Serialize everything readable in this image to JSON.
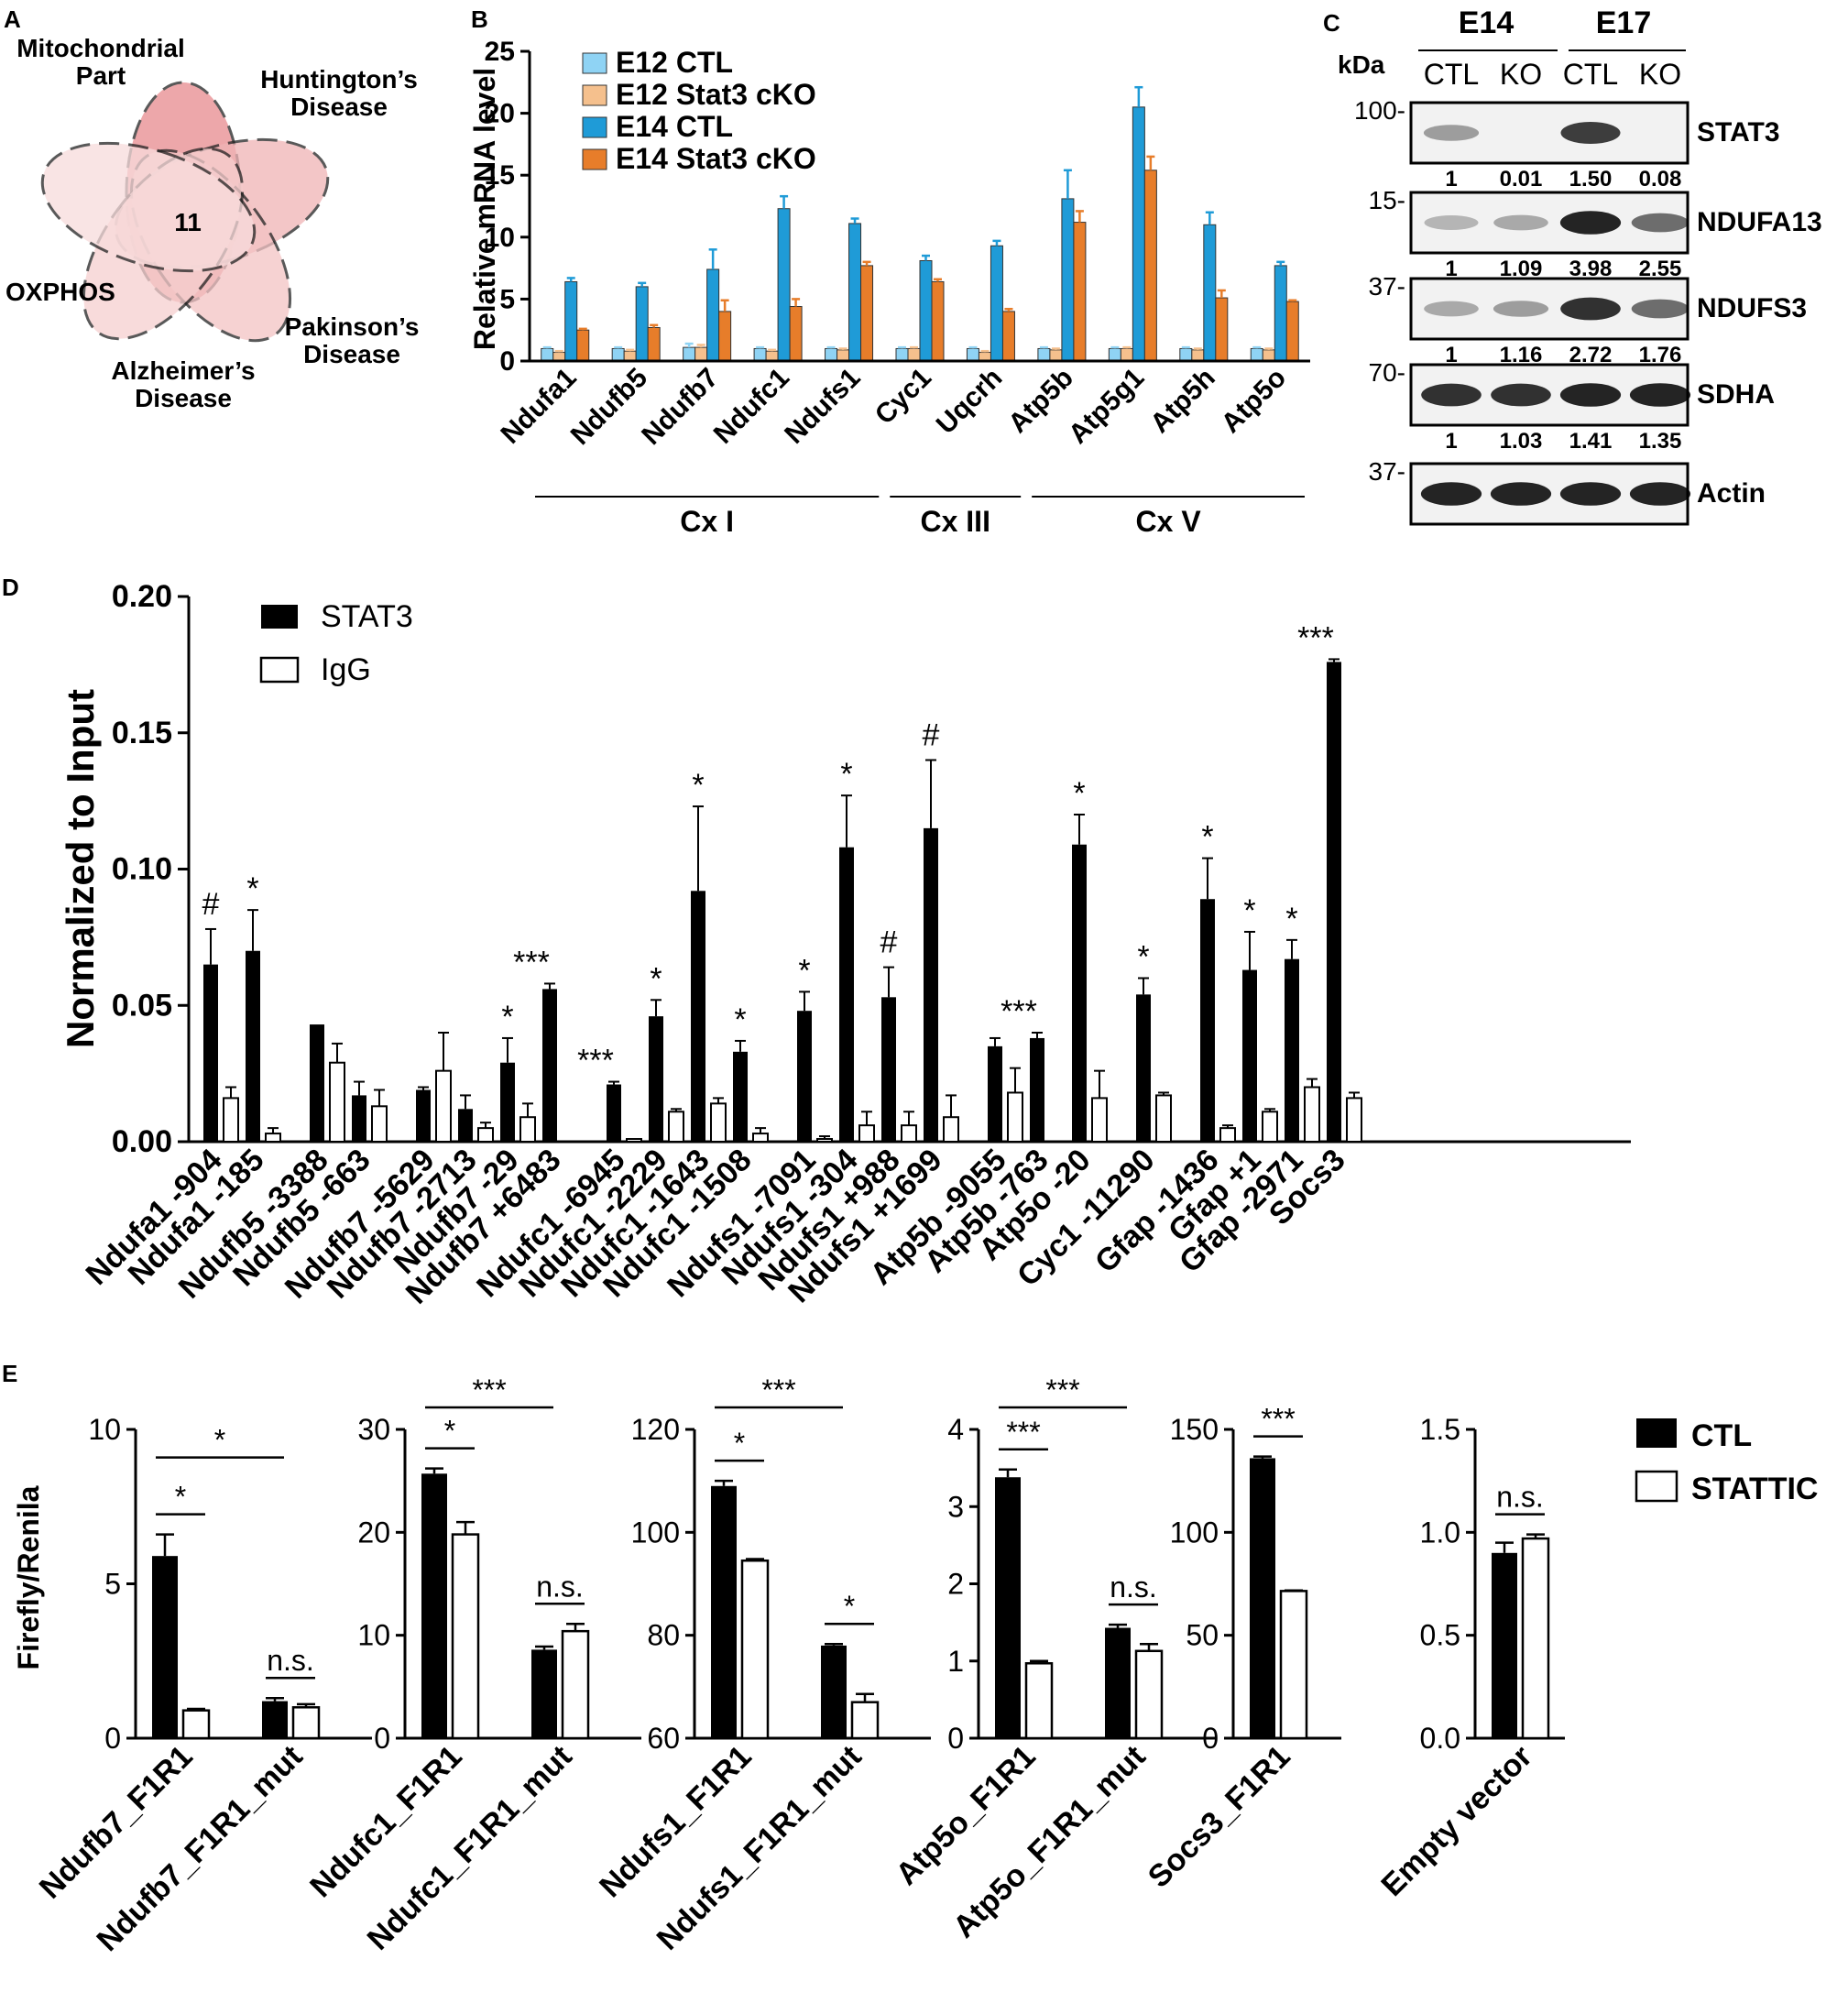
{
  "panel_labels": {
    "a": "A",
    "b": "B",
    "c": "C",
    "d": "D",
    "e": "E"
  },
  "venn": {
    "center_count": "11",
    "labels": [
      "Mitochondrial Part",
      "Huntington’s Disease",
      "Pakinson’s Disease",
      "Alzheimer’s Disease",
      "OXPHOS"
    ],
    "colors": [
      "#e88a8e",
      "#efb3b5",
      "#f3c3c4",
      "#f6cfcf",
      "#f8dcdc"
    ]
  },
  "western": {
    "kda_label": "kDa",
    "groups": [
      "E14",
      "E17"
    ],
    "lanes": [
      "CTL",
      "KO",
      "CTL",
      "KO"
    ],
    "blots": [
      {
        "name": "STAT3",
        "kda": "100-",
        "quant": [
          "1",
          "0.01",
          "1.50",
          "0.08"
        ]
      },
      {
        "name": "NDUFA13",
        "kda": "15-",
        "quant": [
          "1",
          "1.09",
          "3.98",
          "2.55"
        ]
      },
      {
        "name": "NDUFS3",
        "kda": "37-",
        "quant": [
          "1",
          "1.16",
          "2.72",
          "1.76"
        ]
      },
      {
        "name": "SDHA",
        "kda": "70-",
        "quant": [
          "1",
          "1.03",
          "1.41",
          "1.35"
        ]
      },
      {
        "name": "Actin",
        "kda": "37-",
        "quant": []
      }
    ]
  },
  "chart_data": [
    {
      "panel": "B",
      "type": "bar",
      "ylabel": "Relative mRNA level",
      "ylim": [
        0,
        25
      ],
      "yticks": [
        0,
        5,
        10,
        15,
        20,
        25
      ],
      "categories": [
        "Ndufa1",
        "Ndufb5",
        "Ndufb7",
        "Ndufc1",
        "Ndufs1",
        "Cyc1",
        "Uqcrh",
        "Atp5b",
        "Atp5g1",
        "Atp5h",
        "Atp5o"
      ],
      "series": [
        {
          "name": "E12 CTL",
          "color": "#8fd3f4",
          "values": [
            1.0,
            1.0,
            1.1,
            1.0,
            1.0,
            1.0,
            1.0,
            1.0,
            1.0,
            1.0,
            1.0
          ],
          "errors": [
            0.1,
            0.1,
            0.3,
            0.1,
            0.1,
            0.1,
            0.1,
            0.1,
            0.1,
            0.1,
            0.1
          ]
        },
        {
          "name": "E12 Stat3 cKO",
          "color": "#f5c08d",
          "values": [
            0.7,
            0.8,
            1.1,
            0.8,
            0.9,
            1.0,
            0.7,
            0.9,
            1.0,
            0.9,
            0.9
          ],
          "errors": [
            0.1,
            0.1,
            0.2,
            0.1,
            0.1,
            0.1,
            0.1,
            0.1,
            0.1,
            0.1,
            0.1
          ]
        },
        {
          "name": "E14 CTL",
          "color": "#1f9bd7",
          "values": [
            6.4,
            6.0,
            7.4,
            12.3,
            11.1,
            8.1,
            9.3,
            13.1,
            20.5,
            11.0,
            7.7
          ],
          "errors": [
            0.3,
            0.3,
            1.6,
            1.0,
            0.4,
            0.4,
            0.4,
            2.3,
            1.6,
            1.0,
            0.3
          ]
        },
        {
          "name": "E14 Stat3 cKO",
          "color": "#e77d2a",
          "values": [
            2.5,
            2.7,
            4.0,
            4.4,
            7.7,
            6.4,
            4.0,
            11.2,
            15.4,
            5.1,
            4.8
          ],
          "errors": [
            0.1,
            0.2,
            0.9,
            0.6,
            0.3,
            0.2,
            0.2,
            0.9,
            1.1,
            0.6,
            0.1
          ]
        }
      ],
      "complex_groups": [
        {
          "label": "Cx I",
          "from": 0,
          "to": 4
        },
        {
          "label": "Cx III",
          "from": 5,
          "to": 6
        },
        {
          "label": "Cx V",
          "from": 7,
          "to": 10
        }
      ]
    },
    {
      "panel": "D",
      "type": "bar",
      "ylabel": "Normalized to Input",
      "ylim": [
        0,
        0.2
      ],
      "yticks": [
        "0.00",
        "0.05",
        "0.10",
        "0.15",
        "0.20"
      ],
      "series_names": [
        "STAT3",
        "IgG"
      ],
      "groups": [
        {
          "items": [
            {
              "label": "Ndufa1 -904",
              "stat3": 0.065,
              "stat3_err": 0.013,
              "igg": 0.016,
              "igg_err": 0.004,
              "sig": "#"
            },
            {
              "label": "Ndufa1 -185",
              "stat3": 0.07,
              "stat3_err": 0.015,
              "igg": 0.003,
              "igg_err": 0.002,
              "sig": "*"
            }
          ]
        },
        {
          "items": [
            {
              "label": "Ndufb5 -3388",
              "stat3": 0.043,
              "stat3_err": 0.0,
              "igg": 0.029,
              "igg_err": 0.007,
              "sig": ""
            },
            {
              "label": "Ndufb5 -663",
              "stat3": 0.017,
              "stat3_err": 0.005,
              "igg": 0.013,
              "igg_err": 0.006,
              "sig": ""
            }
          ]
        },
        {
          "items": [
            {
              "label": "Ndufb7 -5629",
              "stat3": 0.019,
              "stat3_err": 0.001,
              "igg": 0.026,
              "igg_err": 0.014,
              "sig": ""
            },
            {
              "label": "Ndufb7 -2713",
              "stat3": 0.012,
              "stat3_err": 0.005,
              "igg": 0.005,
              "igg_err": 0.002,
              "sig": ""
            },
            {
              "label": "Ndufb7 -29",
              "stat3": 0.029,
              "stat3_err": 0.009,
              "igg": 0.009,
              "igg_err": 0.005,
              "sig": "*"
            },
            {
              "label": "Ndufb7 +6483",
              "stat3": 0.056,
              "stat3_err": 0.002,
              "igg": 0.0,
              "igg_err": 0.0,
              "sig": "***"
            }
          ]
        },
        {
          "items": [
            {
              "label": "Ndufc1 -6945",
              "stat3": 0.021,
              "stat3_err": 0.001,
              "igg": 0.001,
              "igg_err": 0.0,
              "sig": "***"
            },
            {
              "label": "Ndufc1 -2229",
              "stat3": 0.046,
              "stat3_err": 0.006,
              "igg": 0.011,
              "igg_err": 0.001,
              "sig": "*"
            },
            {
              "label": "Ndufc1 -1643",
              "stat3": 0.092,
              "stat3_err": 0.031,
              "igg": 0.014,
              "igg_err": 0.002,
              "sig": "*"
            },
            {
              "label": "Ndufc1 -1508",
              "stat3": 0.033,
              "stat3_err": 0.004,
              "igg": 0.003,
              "igg_err": 0.002,
              "sig": "*"
            }
          ]
        },
        {
          "items": [
            {
              "label": "Ndufs1 -7091",
              "stat3": 0.048,
              "stat3_err": 0.007,
              "igg": 0.001,
              "igg_err": 0.001,
              "sig": "*"
            },
            {
              "label": "Ndufs1 -304",
              "stat3": 0.108,
              "stat3_err": 0.019,
              "igg": 0.006,
              "igg_err": 0.005,
              "sig": "*"
            },
            {
              "label": "Ndufs1 +988",
              "stat3": 0.053,
              "stat3_err": 0.011,
              "igg": 0.006,
              "igg_err": 0.005,
              "sig": "#"
            },
            {
              "label": "Ndufs1 +1699",
              "stat3": 0.115,
              "stat3_err": 0.025,
              "igg": 0.009,
              "igg_err": 0.008,
              "sig": "#"
            }
          ]
        },
        {
          "items": [
            {
              "label": "Atp5b -9055",
              "stat3": 0.035,
              "stat3_err": 0.003,
              "igg": 0.018,
              "igg_err": 0.009,
              "sig": ""
            },
            {
              "label": "Atp5b -763",
              "stat3": 0.038,
              "stat3_err": 0.002,
              "igg": 0.0,
              "igg_err": 0.0,
              "sig": "***"
            },
            {
              "label": "Atp5o -20",
              "stat3": 0.109,
              "stat3_err": 0.011,
              "igg": 0.016,
              "igg_err": 0.01,
              "sig": "*"
            }
          ]
        },
        {
          "items": [
            {
              "label": "Cyc1 -11290",
              "stat3": 0.054,
              "stat3_err": 0.006,
              "igg": 0.017,
              "igg_err": 0.001,
              "sig": "*"
            }
          ]
        },
        {
          "items": [
            {
              "label": "Gfap -1436",
              "stat3": 0.089,
              "stat3_err": 0.015,
              "igg": 0.005,
              "igg_err": 0.001,
              "sig": "*"
            },
            {
              "label": "Gfap +1",
              "stat3": 0.063,
              "stat3_err": 0.014,
              "igg": 0.011,
              "igg_err": 0.001,
              "sig": "*"
            },
            {
              "label": "Gfap -2971",
              "stat3": 0.067,
              "stat3_err": 0.007,
              "igg": 0.02,
              "igg_err": 0.003,
              "sig": "*"
            },
            {
              "label": "Socs3",
              "stat3": 0.176,
              "stat3_err": 0.001,
              "igg": 0.016,
              "igg_err": 0.002,
              "sig": "***"
            }
          ]
        }
      ]
    },
    {
      "panel": "E",
      "type": "bar",
      "ylabel": "Firefly/Renila",
      "legend": [
        "CTL",
        "STATTIC"
      ],
      "subplots": [
        {
          "ylim": [
            0,
            10
          ],
          "yticks": [
            "0",
            "5",
            "10"
          ],
          "categories": [
            "Ndufb7_F1R1",
            "Ndufb7_F1R1_mut"
          ],
          "ctl": [
            5.9,
            1.2
          ],
          "ctl_err": [
            0.7,
            0.1
          ],
          "stattic": [
            0.9,
            1.0
          ],
          "stattic_err": [
            0.05,
            0.1
          ],
          "pair_sig": [
            "*",
            "n.s."
          ],
          "cross_sig": "*"
        },
        {
          "ylim": [
            0,
            30
          ],
          "yticks": [
            "0",
            "10",
            "20",
            "30"
          ],
          "categories": [
            "Ndufc1_F1R1",
            "Ndufc1_F1R1_mut"
          ],
          "ctl": [
            25.7,
            8.6
          ],
          "ctl_err": [
            0.5,
            0.3
          ],
          "stattic": [
            19.8,
            10.4
          ],
          "stattic_err": [
            1.2,
            0.7
          ],
          "pair_sig": [
            "*",
            "n.s."
          ],
          "cross_sig": "***"
        },
        {
          "ylim": [
            60,
            120
          ],
          "yticks": [
            "60",
            "80",
            "100",
            "120"
          ],
          "categories": [
            "Ndufs1_F1R1",
            "Ndufs1_F1R1_mut"
          ],
          "ctl": [
            109,
            78
          ],
          "ctl_err": [
            1.0,
            0.3
          ],
          "stattic": [
            94.5,
            67.0
          ],
          "stattic_err": [
            0.3,
            1.6
          ],
          "pair_sig": [
            "*",
            "*"
          ],
          "cross_sig": "***"
        },
        {
          "ylim": [
            0,
            4
          ],
          "yticks": [
            "0",
            "1",
            "2",
            "3",
            "4"
          ],
          "categories": [
            "Atp5o_F1R1",
            "Atp5o_F1R1_mut"
          ],
          "ctl": [
            3.38,
            1.43
          ],
          "ctl_err": [
            0.1,
            0.04
          ],
          "stattic": [
            0.97,
            1.13
          ],
          "stattic_err": [
            0.03,
            0.09
          ],
          "pair_sig": [
            "***",
            "n.s."
          ],
          "cross_sig": "***"
        },
        {
          "ylim": [
            0,
            150
          ],
          "yticks": [
            "0",
            "50",
            "100",
            "150"
          ],
          "categories": [
            "Socs3_F1R1"
          ],
          "ctl": [
            136
          ],
          "ctl_err": [
            0.8
          ],
          "stattic": [
            71.5
          ],
          "stattic_err": [
            0.3
          ],
          "pair_sig": [
            "***"
          ],
          "cross_sig": ""
        },
        {
          "ylim": [
            0,
            1.5
          ],
          "yticks": [
            "0.0",
            "0.5",
            "1.0",
            "1.5"
          ],
          "categories": [
            "Empty vector"
          ],
          "ctl": [
            0.9
          ],
          "ctl_err": [
            0.05
          ],
          "stattic": [
            0.97
          ],
          "stattic_err": [
            0.02
          ],
          "pair_sig": [
            "n.s."
          ],
          "cross_sig": ""
        }
      ]
    }
  ]
}
